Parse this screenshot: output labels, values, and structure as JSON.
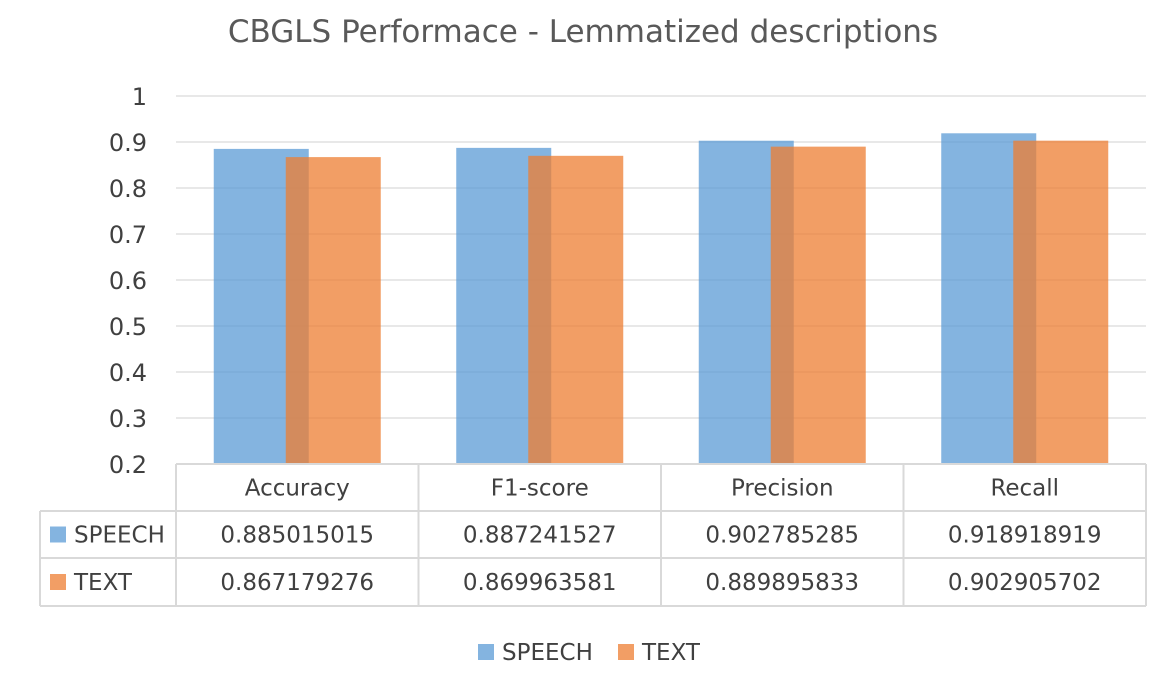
{
  "chart_data": {
    "type": "bar",
    "title": "CBGLS Performace - Lemmatized descriptions",
    "categories": [
      "Accuracy",
      "F1-score",
      "Precision",
      "Recall"
    ],
    "series": [
      {
        "name": "SPEECH",
        "color": "#5B9BD5",
        "values": [
          0.885015015,
          0.887241527,
          0.902785285,
          0.918918919
        ],
        "value_labels": [
          "0.885015015",
          "0.887241527",
          "0.902785285",
          "0.918918919"
        ]
      },
      {
        "name": "TEXT",
        "color": "#ED7D31",
        "values": [
          0.867179276,
          0.869963581,
          0.889895833,
          0.902905702
        ],
        "value_labels": [
          "0.867179276",
          "0.869963581",
          "0.889895833",
          "0.902905702"
        ]
      }
    ],
    "ylim": [
      0.2,
      1
    ],
    "yticks": [
      "1",
      "0.9",
      "0.8",
      "0.7",
      "0.6",
      "0.5",
      "0.4",
      "0.3",
      "0.2"
    ],
    "ytick_values": [
      1,
      0.9,
      0.8,
      0.7,
      0.6,
      0.5,
      0.4,
      0.3,
      0.2
    ],
    "grid": true,
    "data_table": true,
    "legend_position": "bottom"
  }
}
